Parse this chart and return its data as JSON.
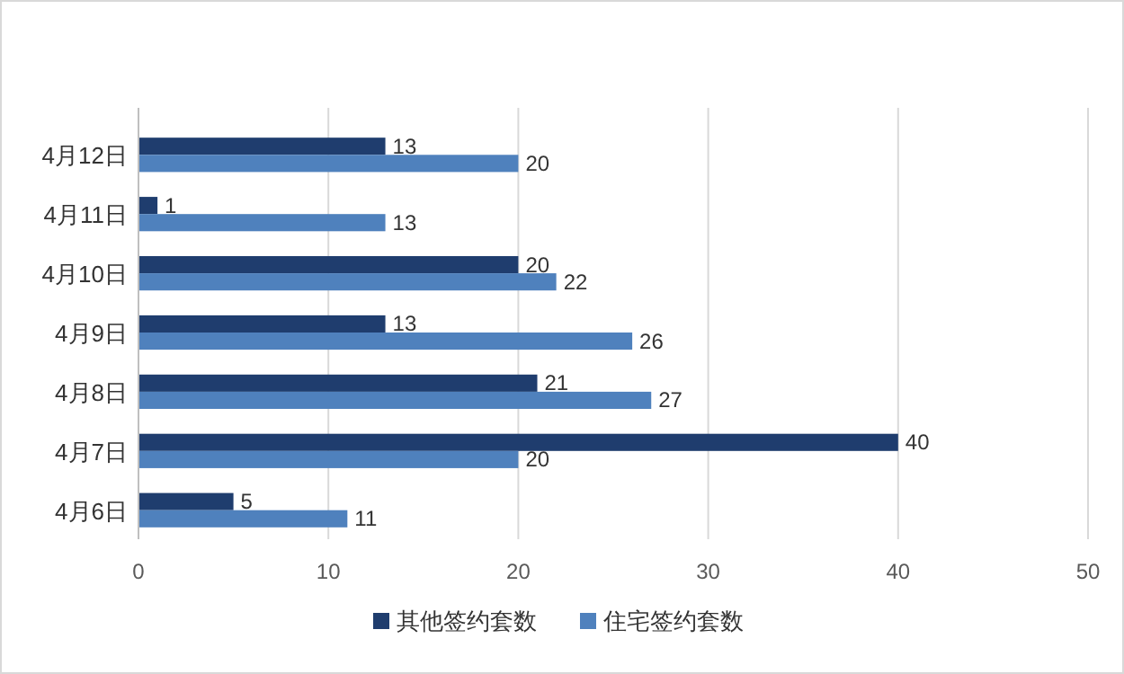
{
  "chart_data": {
    "type": "bar",
    "orientation": "horizontal",
    "categories": [
      "4月12日",
      "4月11日",
      "4月10日",
      "4月9日",
      "4月8日",
      "4月7日",
      "4月6日"
    ],
    "series": [
      {
        "name": "其他签约套数",
        "color": "#1f3d6e",
        "values": [
          13,
          1,
          20,
          13,
          21,
          40,
          5
        ]
      },
      {
        "name": "住宅签约套数",
        "color": "#4f81bd",
        "values": [
          20,
          13,
          22,
          26,
          27,
          20,
          11
        ]
      }
    ],
    "xlim": [
      0,
      50
    ],
    "xticks": [
      0,
      10,
      20,
      30,
      40,
      50
    ],
    "grid": "x",
    "legend": "bottom",
    "data_labels": true
  }
}
